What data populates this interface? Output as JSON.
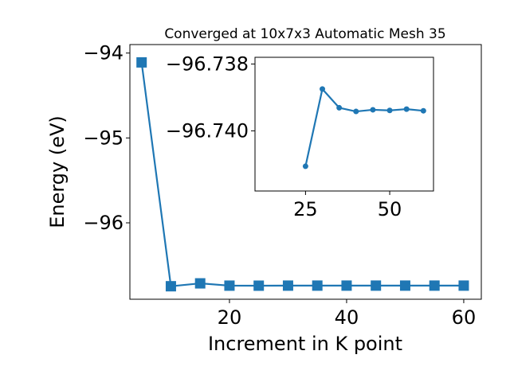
{
  "chart_data": [
    {
      "type": "line",
      "title": "Converged at 10x7x3 Automatic Mesh 35",
      "xlabel": "Increment in K point",
      "ylabel": "Energy (eV)",
      "xlim": [
        3,
        63
      ],
      "ylim": [
        -96.9,
        -93.9
      ],
      "xticks": [
        20,
        40,
        60
      ],
      "xtick_labels": [
        "20",
        "40",
        "60"
      ],
      "yticks": [
        -94,
        -95,
        -96
      ],
      "ytick_labels": [
        "−94",
        "−95",
        "−96"
      ],
      "grid": false,
      "color": "#1f77b4",
      "marker": "square",
      "series": [
        {
          "x": [
            5,
            10,
            15,
            20,
            25,
            30,
            35,
            40,
            45,
            50,
            55,
            60
          ],
          "y": [
            -94.11,
            -96.747,
            -96.713,
            -96.74,
            -96.7404,
            -96.7397,
            -96.7396,
            -96.7396,
            -96.7396,
            -96.7396,
            -96.7396,
            -96.7396
          ]
        }
      ]
    },
    {
      "type": "line",
      "title": "",
      "xlabel": "",
      "ylabel": "",
      "xlim": [
        10,
        63
      ],
      "ylim": [
        -96.7418,
        -96.7378
      ],
      "xticks": [
        25,
        50
      ],
      "xtick_labels": [
        "25",
        "50"
      ],
      "yticks": [
        -96.74,
        -96.738
      ],
      "ytick_labels": [
        "−96.740",
        "−96.738"
      ],
      "grid": false,
      "color": "#1f77b4",
      "marker": "circle",
      "series": [
        {
          "x": [
            25,
            30,
            35,
            40,
            45,
            50,
            55,
            60
          ],
          "y": [
            -96.74106,
            -96.73875,
            -96.73931,
            -96.73942,
            -96.73937,
            -96.73939,
            -96.73935,
            -96.7394
          ]
        }
      ]
    }
  ]
}
